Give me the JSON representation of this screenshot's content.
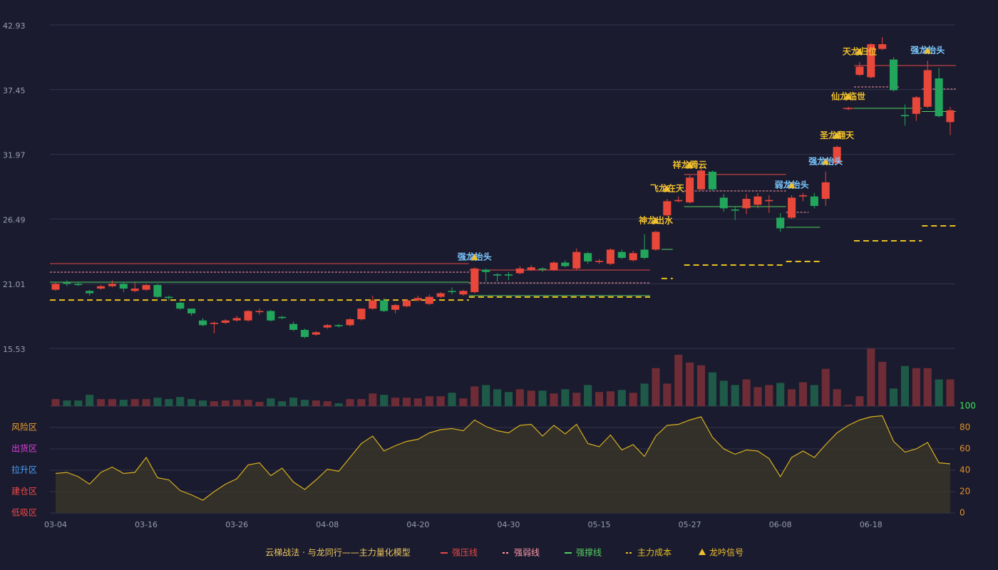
{
  "chart_data": {
    "type": "candlestick",
    "categories": [
      "03-04",
      null,
      null,
      null,
      null,
      null,
      null,
      null,
      "03-16",
      null,
      null,
      null,
      null,
      null,
      null,
      null,
      "03-26",
      null,
      null,
      null,
      null,
      null,
      null,
      null,
      "04-08",
      null,
      null,
      null,
      null,
      null,
      null,
      null,
      "04-20",
      null,
      null,
      null,
      null,
      null,
      null,
      null,
      "04-30",
      null,
      null,
      null,
      null,
      null,
      null,
      null,
      "05-15",
      null,
      null,
      null,
      null,
      null,
      null,
      null,
      "05-27",
      null,
      null,
      null,
      null,
      null,
      null,
      null,
      "06-08",
      null,
      null,
      null,
      null,
      null,
      null,
      null,
      "06-18",
      null,
      null,
      null,
      null,
      null,
      null,
      null
    ],
    "open": [
      20.5,
      21.1,
      21.0,
      20.4,
      20.6,
      20.8,
      21.0,
      20.4,
      20.5,
      20.9,
      19.9,
      19.4,
      18.9,
      17.9,
      17.6,
      17.7,
      17.9,
      17.9,
      18.6,
      18.7,
      18.2,
      17.6,
      17.1,
      16.7,
      17.3,
      17.5,
      17.5,
      18.0,
      18.9,
      19.6,
      18.8,
      19.1,
      19.6,
      19.3,
      19.9,
      20.4,
      20.1,
      20.3,
      22.2,
      21.8,
      21.8,
      21.9,
      22.2,
      22.3,
      22.2,
      22.8,
      22.3,
      23.6,
      22.85,
      22.7,
      23.7,
      23.0,
      23.9,
      23.9,
      26.8,
      28.0,
      27.9,
      29.0,
      30.5,
      28.3,
      27.3,
      27.4,
      27.7,
      28.0,
      26.6,
      26.6,
      28.4,
      28.4,
      28.2,
      31.2,
      35.8,
      38.7,
      38.5,
      40.9,
      40.0,
      35.3,
      35.4,
      36.0,
      38.4,
      34.7
    ],
    "high": [
      21.1,
      21.3,
      21.1,
      20.5,
      20.9,
      21.3,
      21.1,
      21.1,
      21.0,
      21.0,
      20.0,
      19.5,
      18.9,
      18.1,
      17.8,
      18.0,
      18.3,
      18.8,
      18.9,
      18.8,
      18.3,
      17.8,
      17.2,
      17.0,
      17.6,
      17.6,
      18.1,
      18.9,
      20.0,
      19.8,
      19.3,
      19.7,
      20.0,
      20.1,
      20.3,
      20.7,
      20.5,
      22.4,
      22.3,
      21.9,
      22.0,
      22.5,
      22.6,
      22.4,
      22.9,
      23.0,
      24.0,
      23.7,
      23.1,
      24.0,
      23.9,
      23.8,
      25.2,
      25.5,
      28.2,
      28.4,
      30.2,
      30.9,
      30.6,
      28.6,
      27.5,
      28.6,
      28.7,
      28.5,
      27.0,
      28.5,
      28.7,
      28.7,
      30.5,
      32.7,
      36.0,
      39.8,
      41.4,
      41.9,
      40.2,
      36.2,
      36.9,
      39.9,
      39.3,
      36.0
    ],
    "low": [
      20.4,
      20.8,
      20.8,
      20.0,
      20.5,
      20.7,
      20.3,
      20.3,
      20.4,
      19.8,
      19.6,
      18.8,
      18.3,
      17.4,
      16.8,
      17.6,
      17.8,
      17.8,
      18.4,
      17.8,
      18.0,
      17.0,
      16.4,
      16.6,
      17.2,
      17.3,
      17.4,
      17.9,
      18.8,
      18.6,
      18.5,
      19.0,
      19.5,
      19.2,
      19.8,
      20.1,
      20.0,
      20.2,
      21.2,
      21.2,
      21.3,
      21.8,
      22.1,
      22.0,
      22.1,
      22.4,
      22.2,
      22.7,
      22.7,
      22.6,
      23.1,
      22.9,
      23.1,
      23.8,
      26.7,
      27.9,
      27.8,
      28.9,
      28.9,
      27.1,
      26.4,
      26.9,
      27.4,
      27.0,
      25.4,
      26.5,
      28.0,
      27.4,
      27.6,
      31.1,
      35.7,
      38.6,
      38.4,
      40.8,
      37.3,
      34.4,
      34.8,
      35.9,
      35.1,
      33.6
    ],
    "close": [
      21.0,
      21.0,
      20.9,
      20.2,
      20.8,
      21.0,
      20.6,
      20.6,
      20.9,
      19.9,
      19.8,
      18.9,
      18.5,
      17.5,
      17.7,
      17.9,
      18.1,
      18.7,
      18.7,
      17.9,
      18.1,
      17.1,
      16.5,
      16.9,
      17.5,
      17.4,
      18.0,
      18.9,
      19.6,
      18.7,
      19.2,
      19.6,
      19.8,
      19.9,
      20.2,
      20.3,
      20.4,
      22.3,
      22.0,
      21.7,
      21.7,
      22.3,
      22.4,
      22.2,
      22.8,
      22.5,
      23.7,
      22.9,
      22.95,
      23.9,
      23.2,
      23.6,
      23.2,
      25.4,
      28.0,
      28.1,
      30.0,
      30.6,
      29.0,
      27.4,
      27.2,
      28.2,
      28.4,
      28.1,
      25.7,
      28.3,
      28.5,
      27.6,
      29.6,
      32.6,
      35.9,
      39.4,
      41.3,
      41.3,
      37.4,
      35.2,
      36.8,
      39.1,
      35.2,
      35.7
    ],
    "up_color": "#e8473a",
    "down_color": "#22a65c",
    "ylim": [
      15.53,
      42.93
    ],
    "yticks": [
      15.53,
      21.01,
      26.49,
      31.97,
      37.45,
      42.93
    ],
    "grid": true,
    "volume": {
      "values": [
        10,
        8,
        8,
        16,
        10,
        10,
        9,
        10,
        10,
        12,
        10,
        13,
        10,
        8,
        7,
        8,
        9,
        9,
        6,
        11,
        7,
        12,
        9,
        8,
        7,
        4,
        10,
        10,
        18,
        16,
        12,
        12,
        11,
        14,
        14,
        19,
        11,
        28,
        30,
        24,
        20,
        24,
        22,
        22,
        18,
        24,
        19,
        30,
        20,
        21,
        23,
        19,
        32,
        54,
        32,
        73,
        62,
        58,
        48,
        36,
        30,
        38,
        27,
        30,
        33,
        24,
        34,
        30,
        53,
        24,
        2,
        14,
        82,
        63,
        25,
        57,
        54,
        54,
        38,
        38
      ],
      "up_color": "#6e2c36",
      "down_color": "#1e5a47"
    },
    "indicator": {
      "type": "line",
      "color": "#d8b020",
      "values": [
        37,
        38,
        34,
        27,
        38,
        43,
        37,
        38,
        52,
        33,
        31,
        21,
        17,
        12,
        20,
        27,
        32,
        45,
        47,
        35,
        42,
        29,
        22,
        31,
        41,
        39,
        52,
        65,
        72,
        58,
        63,
        67,
        69,
        75,
        78,
        79,
        77,
        87,
        81,
        77,
        75,
        82,
        83,
        72,
        82,
        74,
        83,
        65,
        62,
        73,
        59,
        64,
        53,
        72,
        82,
        83,
        87,
        90,
        71,
        60,
        55,
        59,
        58,
        51,
        34,
        52,
        58,
        52,
        64,
        75,
        82,
        87,
        90,
        91,
        67,
        57,
        60,
        66,
        47,
        46
      ],
      "y2lim": [
        0,
        100
      ],
      "y2ticks": [
        0,
        20,
        40,
        60,
        80,
        100
      ],
      "zones": [
        {
          "label": "风险区",
          "value": 80,
          "color": "#f0a030"
        },
        {
          "label": "出货区",
          "value": 60,
          "color": "#e040e0"
        },
        {
          "label": "拉升区",
          "value": 40,
          "color": "#4aa0ff"
        },
        {
          "label": "建仓区",
          "value": 20,
          "color": "#f04848"
        },
        {
          "label": "低吸区",
          "value": 0,
          "color": "#f04848"
        }
      ]
    },
    "levels": [
      {
        "name": "强压线",
        "color": "#e84a4a",
        "style": "solid",
        "segments": [
          {
            "from": 0,
            "to": 36,
            "value": 22.71
          },
          {
            "from": 37,
            "to": 52,
            "value": 22.17
          },
          {
            "from": 56,
            "to": 64,
            "value": 30.26
          },
          {
            "from": 70,
            "to": 70,
            "value": 35.87
          },
          {
            "from": 71,
            "to": 76,
            "value": 39.49
          },
          {
            "from": 77,
            "to": 79,
            "value": 39.49
          }
        ]
      },
      {
        "name": "强弱线",
        "color": "#ff9aa8",
        "style": "dashed",
        "segments": [
          {
            "from": 0,
            "to": 36,
            "value": 21.99
          },
          {
            "from": 37,
            "to": 52,
            "value": 21.08
          },
          {
            "from": 56,
            "to": 64,
            "value": 28.87
          },
          {
            "from": 65,
            "to": 66,
            "value": 27.06
          },
          {
            "from": 71,
            "to": 74,
            "value": 37.68
          },
          {
            "from": 77,
            "to": 79,
            "value": 37.5
          }
        ]
      },
      {
        "name": "强撑线",
        "color": "#52d060",
        "style": "solid",
        "segments": [
          {
            "from": 0,
            "to": 36,
            "value": 21.14
          },
          {
            "from": 37,
            "to": 52,
            "value": 20.0
          },
          {
            "from": 54,
            "to": 54,
            "value": 23.92
          },
          {
            "from": 56,
            "to": 64,
            "value": 27.54
          },
          {
            "from": 65,
            "to": 67,
            "value": 25.79
          },
          {
            "from": 71,
            "to": 76,
            "value": 35.87
          },
          {
            "from": 77,
            "to": 79,
            "value": 35.6
          }
        ]
      },
      {
        "name": "主力成本",
        "color": "#e8c020",
        "style": "dashed",
        "segments": [
          {
            "from": 0,
            "to": 36,
            "value": 19.63
          },
          {
            "from": 37,
            "to": 52,
            "value": 19.88
          },
          {
            "from": 54,
            "to": 54,
            "value": 21.45
          },
          {
            "from": 56,
            "to": 64,
            "value": 22.59
          },
          {
            "from": 65,
            "to": 67,
            "value": 22.89
          },
          {
            "from": 71,
            "to": 76,
            "value": 24.64
          },
          {
            "from": 77,
            "to": 79,
            "value": 25.91
          }
        ]
      }
    ],
    "signals": {
      "name": "龙吟信号",
      "color": "#f0c030",
      "items": [
        {
          "index": 37,
          "label": "强龙抬头",
          "color": "#7cc8ff"
        },
        {
          "index": 53,
          "label": "神龙出水",
          "color": "#f0c030"
        },
        {
          "index": 54,
          "label": "飞龙在天",
          "color": "#f0c030"
        },
        {
          "index": 56,
          "label": "祥龙腾云",
          "color": "#f0c030"
        },
        {
          "index": 65,
          "label": "弱龙抬头",
          "color": "#7cc8ff"
        },
        {
          "index": 68,
          "label": "强龙抬头",
          "color": "#7cc8ff"
        },
        {
          "index": 69,
          "label": "圣龙翻天",
          "color": "#f0c030"
        },
        {
          "index": 70,
          "label": "仙龙临世",
          "color": "#f0c030"
        },
        {
          "index": 71,
          "label": "天龙归位",
          "color": "#f0c030"
        },
        {
          "index": 77,
          "label": "强龙抬头",
          "color": "#7cc8ff"
        }
      ]
    },
    "legend": {
      "title": "云梯战法 · 与龙同行——主力量化模型",
      "title_color": "#f0c860",
      "position": "bottom"
    }
  }
}
